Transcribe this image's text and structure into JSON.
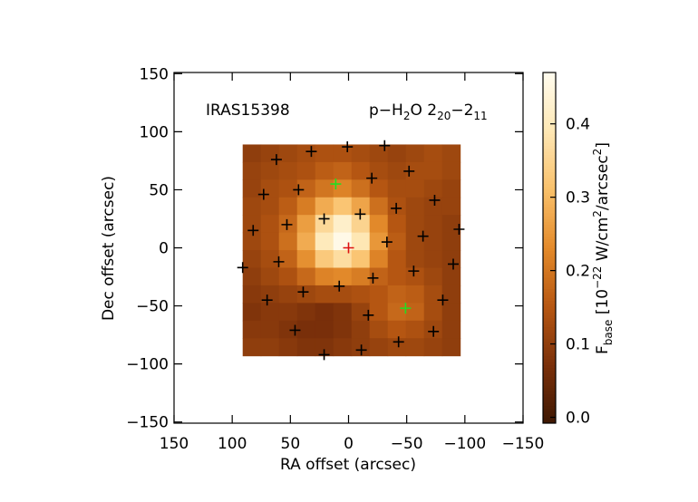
{
  "chart_data": {
    "type": "image",
    "title_left": "IRAS15398",
    "title_right": [
      {
        "text": "p−H"
      },
      {
        "text": "2",
        "pos": "sub"
      },
      {
        "text": "O 2"
      },
      {
        "text": "20",
        "pos": "sub"
      },
      {
        "text": "−2"
      },
      {
        "text": "11",
        "pos": "sub"
      }
    ],
    "xlabel": "RA offset (arcsec)",
    "ylabel": "Dec offset (arcsec)",
    "xlim": [
      150,
      -150
    ],
    "ylim": [
      -151,
      151
    ],
    "xticks": [
      150,
      100,
      50,
      0,
      {
        "value": -50,
        "label": "−50"
      },
      {
        "value": -100,
        "label": "−100"
      },
      {
        "value": -150,
        "label": "−150"
      }
    ],
    "yticks": [
      {
        "value": -150,
        "label": "−150"
      },
      {
        "value": -100,
        "label": "−100"
      },
      {
        "value": -50,
        "label": "−50"
      },
      0,
      50,
      100,
      150
    ],
    "image": {
      "extent_x": [
        91,
        -96
      ],
      "extent_y": [
        89,
        -93
      ],
      "values": [
        [
          0.1,
          0.11,
          0.12,
          0.13,
          0.14,
          0.14,
          0.13,
          0.12,
          0.11,
          0.12,
          0.13,
          0.12
        ],
        [
          0.11,
          0.12,
          0.13,
          0.14,
          0.16,
          0.17,
          0.15,
          0.13,
          0.12,
          0.13,
          0.13,
          0.12
        ],
        [
          0.11,
          0.13,
          0.14,
          0.17,
          0.2,
          0.22,
          0.19,
          0.15,
          0.13,
          0.13,
          0.12,
          0.11
        ],
        [
          0.12,
          0.13,
          0.16,
          0.21,
          0.28,
          0.32,
          0.27,
          0.19,
          0.14,
          0.12,
          0.11,
          0.11
        ],
        [
          0.12,
          0.14,
          0.18,
          0.26,
          0.36,
          0.42,
          0.35,
          0.23,
          0.15,
          0.12,
          0.11,
          0.1
        ],
        [
          0.12,
          0.14,
          0.19,
          0.28,
          0.4,
          0.46,
          0.39,
          0.25,
          0.16,
          0.12,
          0.11,
          0.1
        ],
        [
          0.11,
          0.13,
          0.17,
          0.24,
          0.33,
          0.37,
          0.32,
          0.22,
          0.15,
          0.12,
          0.11,
          0.1
        ],
        [
          0.1,
          0.12,
          0.14,
          0.18,
          0.22,
          0.23,
          0.21,
          0.17,
          0.15,
          0.14,
          0.12,
          0.1
        ],
        [
          0.09,
          0.1,
          0.11,
          0.12,
          0.13,
          0.13,
          0.14,
          0.15,
          0.17,
          0.16,
          0.13,
          0.1
        ],
        [
          0.08,
          0.09,
          0.09,
          0.08,
          0.07,
          0.08,
          0.11,
          0.15,
          0.18,
          0.17,
          0.13,
          0.1
        ],
        [
          0.09,
          0.09,
          0.08,
          0.07,
          0.07,
          0.08,
          0.1,
          0.13,
          0.15,
          0.14,
          0.12,
          0.1
        ],
        [
          0.1,
          0.1,
          0.09,
          0.08,
          0.08,
          0.09,
          0.1,
          0.11,
          0.12,
          0.12,
          0.11,
          0.1
        ]
      ]
    },
    "colormap": [
      "#3e1803",
      "#7a300a",
      "#b65712",
      "#e38a2a",
      "#f9c06a",
      "#fee7b4",
      "#fffcee"
    ],
    "clim": [
      -0.008,
      0.47
    ],
    "colorbar_ticks": [
      {
        "value": 0,
        "label": "0.0"
      },
      0.1,
      0.2,
      0.3,
      0.4
    ],
    "colorbar_label": [
      {
        "text": "F"
      },
      {
        "text": "base",
        "pos": "sub"
      },
      {
        "text": " [10"
      },
      {
        "text": "−22",
        "pos": "sup"
      },
      {
        "text": " W/cm"
      },
      {
        "text": "2",
        "pos": "sup"
      },
      {
        "text": "/arcsec"
      },
      {
        "text": "2",
        "pos": "sup"
      },
      {
        "text": "]"
      }
    ],
    "series": [
      {
        "color": "#000000",
        "x": [
          62,
          32,
          1,
          -31,
          73,
          43,
          -20,
          -52,
          82,
          53,
          21,
          -10,
          -41,
          -74,
          91,
          60,
          -33,
          -64,
          -95,
          70,
          39,
          8,
          -21,
          -56,
          -90,
          46,
          -17,
          -81,
          21,
          -11,
          -43,
          -73
        ],
        "y": [
          76,
          83,
          87,
          88,
          46,
          50,
          60,
          66,
          15,
          20,
          25,
          29,
          34,
          41,
          -17,
          -12,
          5,
          10,
          16,
          -45,
          -38,
          -33,
          -26,
          -20,
          -14,
          -71,
          -58,
          -45,
          -92,
          -88,
          -81,
          -72
        ]
      },
      {
        "color": "#22dd22",
        "x": [
          11,
          -49
        ],
        "y": [
          55,
          -52
        ]
      },
      {
        "color": "#dd1111",
        "x": [
          0
        ],
        "y": [
          0
        ]
      }
    ]
  }
}
